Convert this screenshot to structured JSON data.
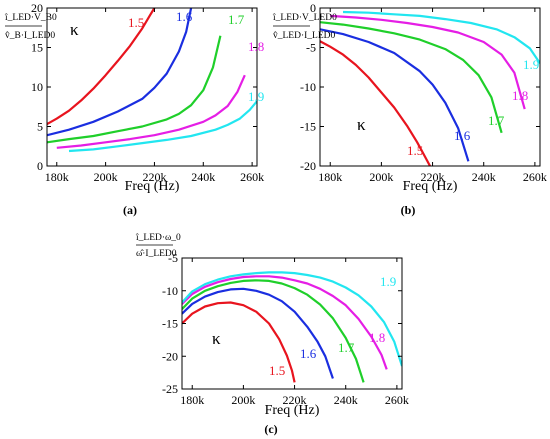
{
  "colors": {
    "series": [
      "#e8141e",
      "#1a2ee0",
      "#1fcf2a",
      "#e51ee5",
      "#22e6f0"
    ],
    "axis": "#000000",
    "background": "#ffffff"
  },
  "chart_data": [
    {
      "type": "line",
      "panel_label": "(a)",
      "xlabel": "Freq (Hz)",
      "ylabel": [
        "î_LED·V_B0",
        "v̂_B·I_LED0"
      ],
      "legend_symbol": "κ",
      "xlim": [
        176000,
        262000
      ],
      "ylim": [
        0,
        20
      ],
      "xticks": [
        180000,
        200000,
        220000,
        240000,
        260000
      ],
      "xtick_labels": [
        "180k",
        "200k",
        "220k",
        "240k",
        "260k"
      ],
      "yticks": [
        0,
        5,
        10,
        15,
        20
      ],
      "ytick_labels": [
        "0",
        "5",
        "10",
        "15",
        "20"
      ],
      "grid": false,
      "series": [
        {
          "name": "1.5",
          "x": [
            176000,
            180000,
            185000,
            190000,
            195000,
            200000,
            205000,
            210000,
            215000,
            218000,
            220000
          ],
          "y": [
            5.3,
            6.0,
            7.0,
            8.3,
            9.8,
            11.5,
            13.3,
            15.2,
            17.4,
            19.0,
            20.0
          ]
        },
        {
          "name": "1.6",
          "x": [
            176000,
            185000,
            195000,
            205000,
            215000,
            220000,
            225000,
            230000,
            233000,
            235000
          ],
          "y": [
            3.9,
            4.6,
            5.6,
            6.9,
            8.5,
            9.9,
            11.7,
            14.5,
            17.0,
            20.0
          ]
        },
        {
          "name": "1.7",
          "x": [
            176000,
            185000,
            195000,
            205000,
            215000,
            225000,
            230000,
            235000,
            240000,
            244000,
            247000
          ],
          "y": [
            3.0,
            3.4,
            3.8,
            4.4,
            5.0,
            5.9,
            6.6,
            7.7,
            9.6,
            12.5,
            16.5
          ]
        },
        {
          "name": "1.8",
          "x": [
            180000,
            190000,
            200000,
            210000,
            220000,
            230000,
            240000,
            245000,
            250000,
            254000,
            257000
          ],
          "y": [
            2.3,
            2.6,
            3.0,
            3.4,
            3.9,
            4.6,
            5.6,
            6.4,
            7.6,
            9.4,
            11.5
          ]
        },
        {
          "name": "1.9",
          "x": [
            185000,
            195000,
            205000,
            215000,
            225000,
            235000,
            245000,
            250000,
            255000,
            259000,
            262000
          ],
          "y": [
            1.9,
            2.1,
            2.5,
            2.9,
            3.3,
            3.8,
            4.6,
            5.2,
            6.0,
            7.1,
            8.2
          ]
        }
      ]
    },
    {
      "type": "line",
      "panel_label": "(b)",
      "xlabel": "Freq (Hz)",
      "ylabel": [
        "î_LED·V_LED0",
        "v̂_LED·I_LED0"
      ],
      "legend_symbol": "κ",
      "xlim": [
        176000,
        262000
      ],
      "ylim": [
        -20,
        0
      ],
      "xticks": [
        180000,
        200000,
        220000,
        240000,
        260000
      ],
      "xtick_labels": [
        "180k",
        "200k",
        "220k",
        "240k",
        "260k"
      ],
      "yticks": [
        -20,
        -15,
        -10,
        -5,
        0
      ],
      "ytick_labels": [
        "-20",
        "-15",
        "-10",
        "-5",
        "0"
      ],
      "grid": false,
      "series": [
        {
          "name": "1.5",
          "x": [
            176000,
            180000,
            185000,
            190000,
            195000,
            200000,
            205000,
            210000,
            214000,
            217000,
            219000
          ],
          "y": [
            -4.2,
            -4.9,
            -5.9,
            -7.2,
            -8.8,
            -10.7,
            -12.6,
            -14.9,
            -17.0,
            -18.8,
            -20.0
          ]
        },
        {
          "name": "1.6",
          "x": [
            176000,
            185000,
            195000,
            205000,
            215000,
            220000,
            225000,
            230000,
            234000
          ],
          "y": [
            -2.7,
            -3.3,
            -4.3,
            -5.7,
            -8.0,
            -9.7,
            -12.0,
            -15.2,
            -19.4
          ]
        },
        {
          "name": "1.7",
          "x": [
            176000,
            185000,
            195000,
            205000,
            215000,
            225000,
            232000,
            238000,
            243000,
            247000
          ],
          "y": [
            -1.8,
            -2.1,
            -2.6,
            -3.2,
            -4.0,
            -5.2,
            -6.6,
            -8.5,
            -11.3,
            -15.8
          ]
        },
        {
          "name": "1.8",
          "x": [
            180000,
            190000,
            200000,
            210000,
            220000,
            230000,
            240000,
            247000,
            252000,
            256000
          ],
          "y": [
            -1.0,
            -1.2,
            -1.5,
            -1.9,
            -2.4,
            -3.1,
            -4.3,
            -5.9,
            -8.2,
            -12.8
          ]
        },
        {
          "name": "1.9",
          "x": [
            185000,
            195000,
            205000,
            215000,
            225000,
            235000,
            245000,
            252000,
            258000,
            262000
          ],
          "y": [
            -0.5,
            -0.6,
            -0.8,
            -1.0,
            -1.4,
            -1.9,
            -2.7,
            -3.7,
            -5.1,
            -7.0
          ]
        }
      ]
    },
    {
      "type": "line",
      "panel_label": "(c)",
      "xlabel": "Freq (Hz)",
      "ylabel": [
        "î_LED·ω_0",
        "ω̂·I_LED0"
      ],
      "legend_symbol": "κ",
      "xlim": [
        176000,
        262000
      ],
      "ylim": [
        -25,
        -5
      ],
      "xticks": [
        180000,
        200000,
        220000,
        240000,
        260000
      ],
      "xtick_labels": [
        "180k",
        "200k",
        "220k",
        "240k",
        "260k"
      ],
      "yticks": [
        -25,
        -20,
        -15,
        -10,
        -5
      ],
      "ytick_labels": [
        "-25",
        "-20",
        "-15",
        "-10",
        "-5"
      ],
      "grid": false,
      "series": [
        {
          "name": "1.5",
          "x": [
            176000,
            180000,
            185000,
            190000,
            195000,
            200000,
            205000,
            210000,
            214000,
            217000,
            219000,
            220000
          ],
          "y": [
            -15.0,
            -13.5,
            -12.4,
            -11.9,
            -11.8,
            -12.2,
            -13.2,
            -15.0,
            -17.4,
            -19.9,
            -22.2,
            -24.0
          ]
        },
        {
          "name": "1.6",
          "x": [
            176000,
            180000,
            185000,
            190000,
            195000,
            200000,
            205000,
            210000,
            215000,
            220000,
            225000,
            229000,
            232000,
            235000
          ],
          "y": [
            -13.5,
            -12.0,
            -10.9,
            -10.2,
            -9.8,
            -9.7,
            -10.0,
            -10.6,
            -11.6,
            -13.2,
            -15.5,
            -17.8,
            -20.0,
            -23.4
          ]
        },
        {
          "name": "1.7",
          "x": [
            176000,
            180000,
            185000,
            190000,
            195000,
            200000,
            205000,
            210000,
            215000,
            220000,
            225000,
            230000,
            235000,
            240000,
            244000,
            247000
          ],
          "y": [
            -12.8,
            -11.2,
            -10.0,
            -9.3,
            -8.8,
            -8.5,
            -8.4,
            -8.5,
            -8.9,
            -9.6,
            -10.6,
            -12.1,
            -14.2,
            -17.2,
            -20.4,
            -24.0
          ]
        },
        {
          "name": "1.8",
          "x": [
            176000,
            180000,
            185000,
            190000,
            195000,
            200000,
            205000,
            210000,
            215000,
            220000,
            225000,
            230000,
            235000,
            240000,
            245000,
            250000,
            254000,
            256000
          ],
          "y": [
            -12.0,
            -10.5,
            -9.4,
            -8.7,
            -8.2,
            -7.9,
            -7.8,
            -7.8,
            -8.0,
            -8.4,
            -8.9,
            -9.7,
            -10.8,
            -12.2,
            -14.3,
            -17.0,
            -19.8,
            -22.0
          ]
        },
        {
          "name": "1.9",
          "x": [
            176000,
            180000,
            185000,
            190000,
            195000,
            200000,
            205000,
            210000,
            215000,
            220000,
            225000,
            230000,
            235000,
            240000,
            245000,
            250000,
            255000,
            259000,
            262000
          ],
          "y": [
            -11.8,
            -10.1,
            -9.0,
            -8.3,
            -7.8,
            -7.5,
            -7.3,
            -7.2,
            -7.2,
            -7.3,
            -7.6,
            -8.0,
            -8.6,
            -9.5,
            -10.7,
            -12.4,
            -14.8,
            -17.8,
            -21.5
          ]
        }
      ]
    }
  ]
}
